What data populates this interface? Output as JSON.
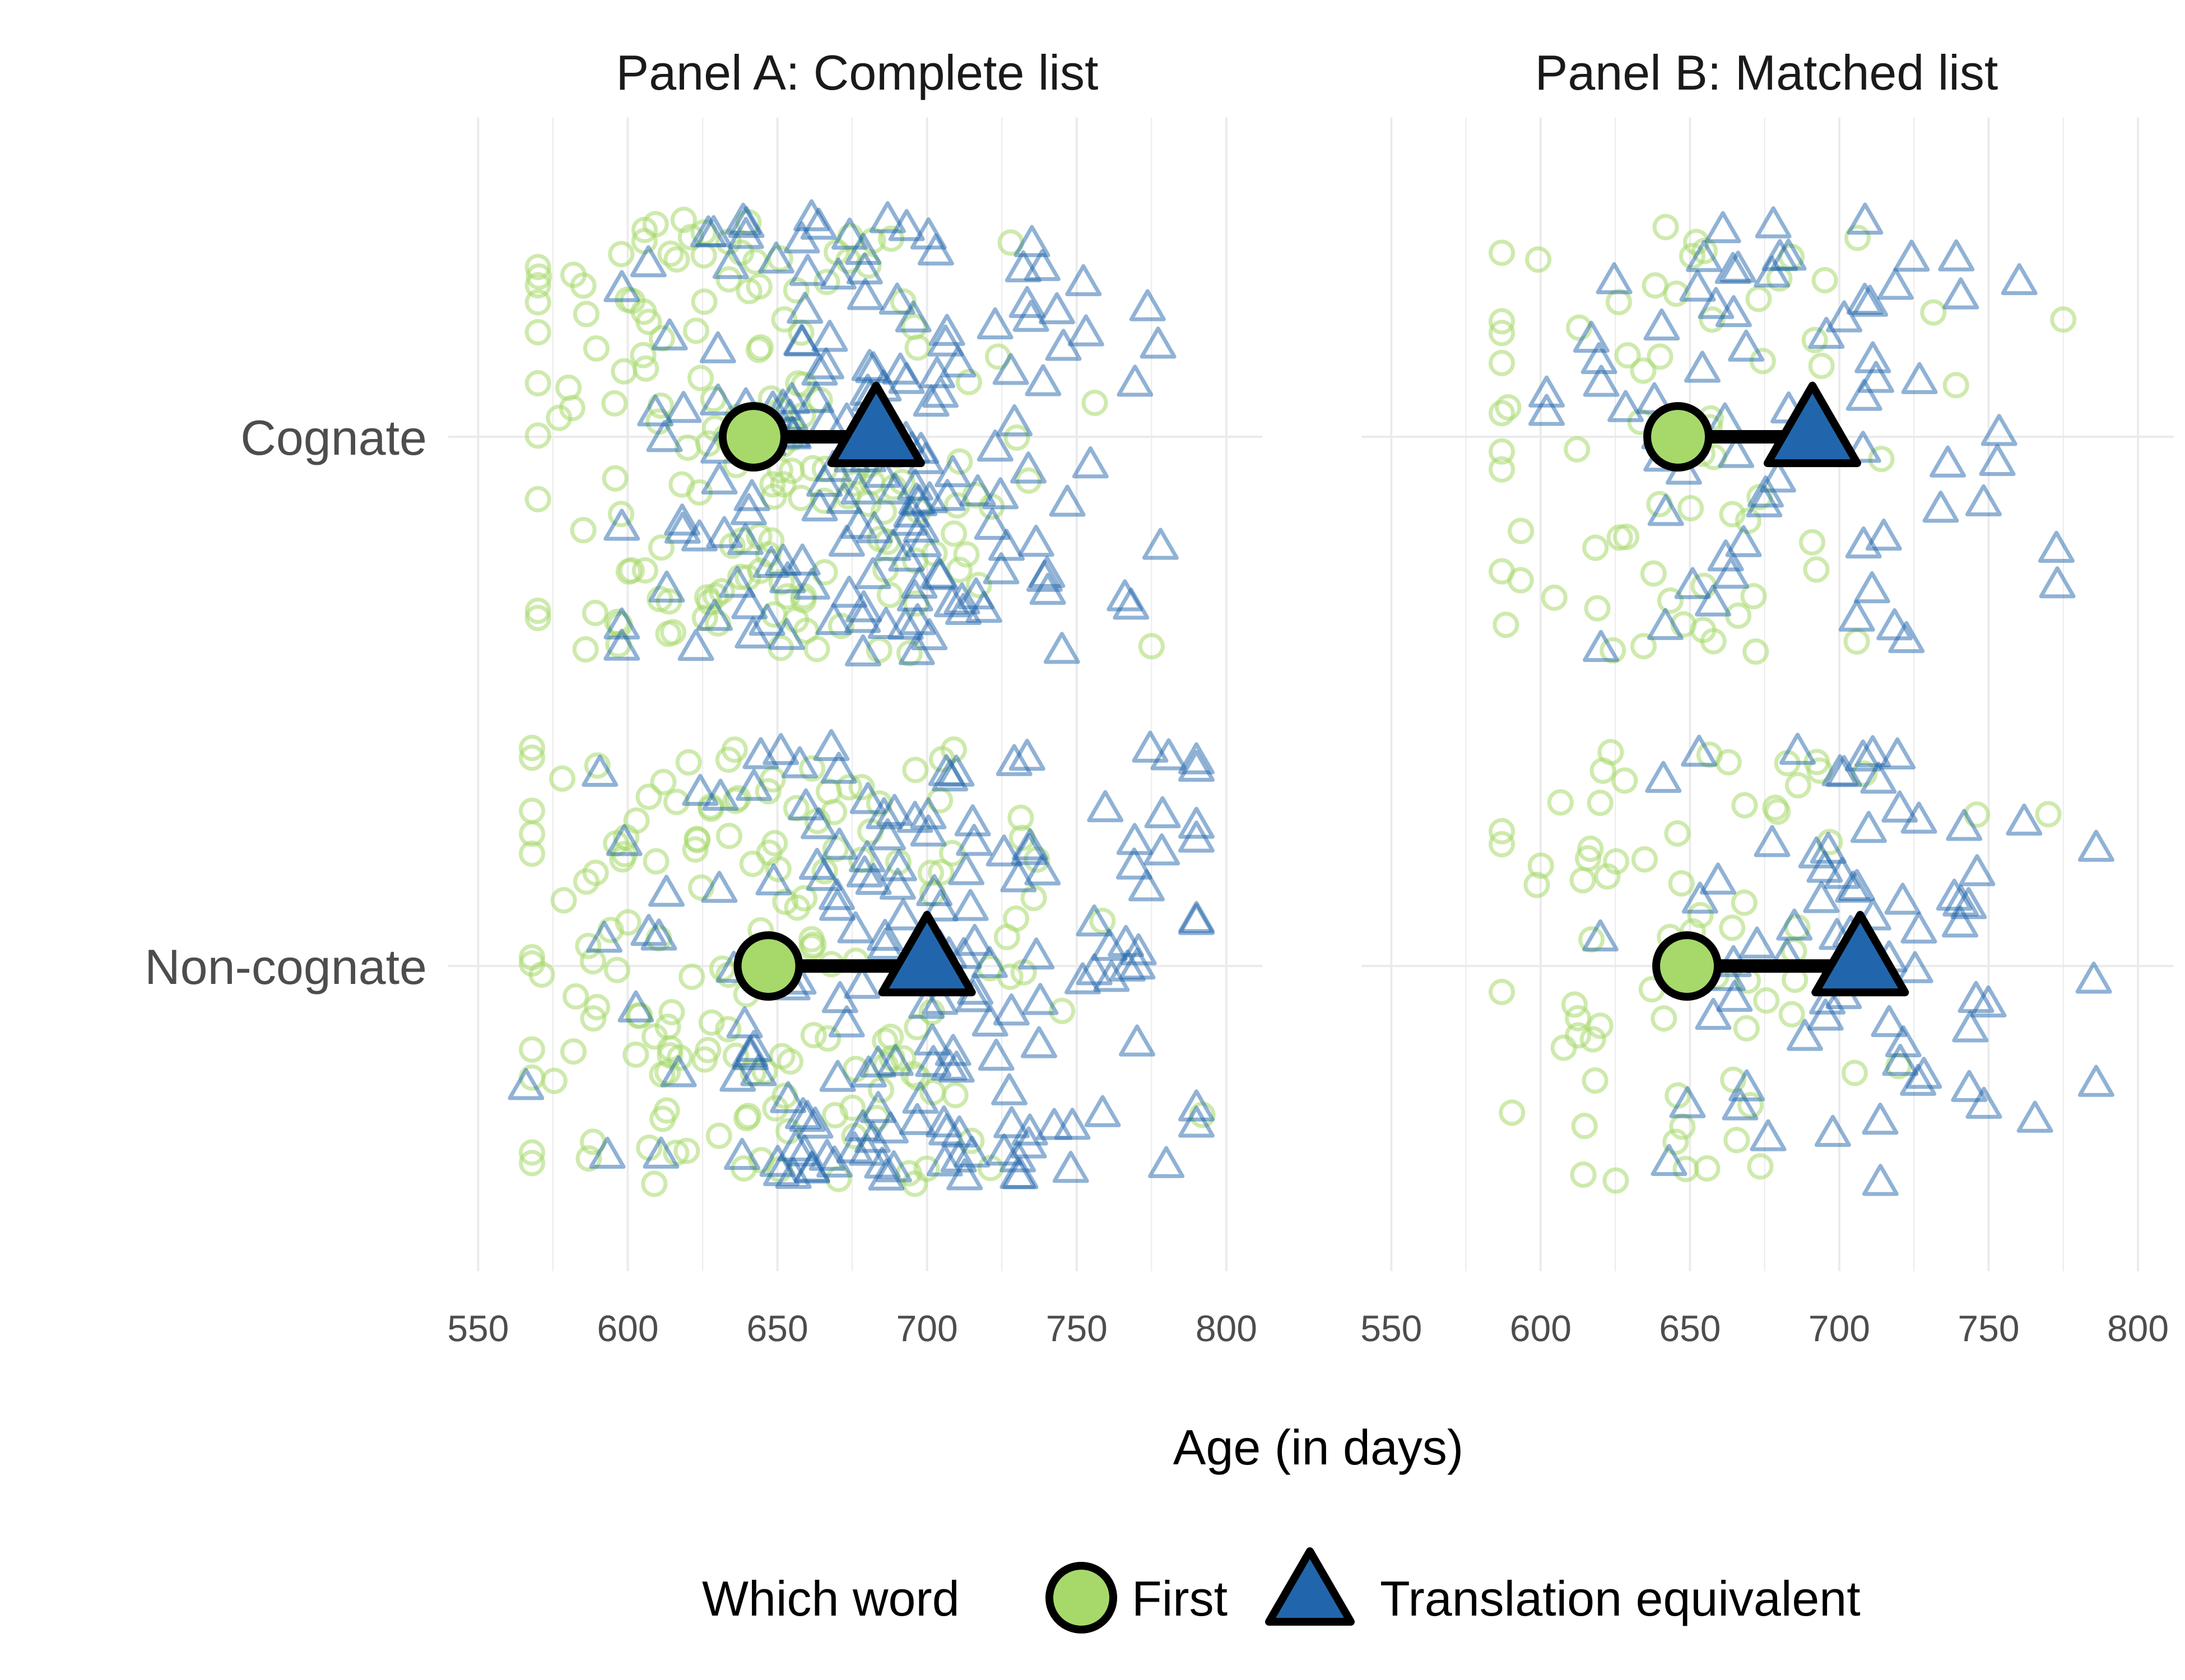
{
  "chart_data": {
    "type": "scatter",
    "xlabel": "Age (in days)",
    "x_ticks": [
      550,
      600,
      650,
      700,
      750,
      800
    ],
    "xlim": [
      540,
      812
    ],
    "categories": [
      "Cognate",
      "Non-cognate"
    ],
    "legend": {
      "title": "Which word",
      "position": "bottom",
      "entries": [
        {
          "name": "First",
          "shape": "circle",
          "color": "#a6d96a"
        },
        {
          "name": "Translation equivalent",
          "shape": "triangle",
          "color": "#2166ac"
        }
      ]
    },
    "colors": {
      "first": "#a6d96a",
      "translation": "#2166ac",
      "outline": "#000000"
    },
    "grid": true,
    "panels": [
      {
        "title": "Panel A: Complete list",
        "means": [
          {
            "category": "Cognate",
            "first": 642,
            "translation": 683
          },
          {
            "category": "Non-cognate",
            "first": 647,
            "translation": 700
          }
        ],
        "jitter_ranges": [
          {
            "category": "Cognate",
            "first": [
              570,
              775
            ],
            "translation": [
              598,
              778
            ]
          },
          {
            "category": "Non-cognate",
            "first": [
              568,
              792
            ],
            "translation": [
              566,
              790
            ]
          }
        ],
        "approx_points_per_group": 170
      },
      {
        "title": "Panel B: Matched list",
        "means": [
          {
            "category": "Cognate",
            "first": 646,
            "translation": 691
          },
          {
            "category": "Non-cognate",
            "first": 649,
            "translation": 707
          }
        ],
        "jitter_ranges": [
          {
            "category": "Cognate",
            "first": [
              587,
              775
            ],
            "translation": [
              602,
              773
            ]
          },
          {
            "category": "Non-cognate",
            "first": [
              587,
              770
            ],
            "translation": [
              620,
              786
            ]
          }
        ],
        "approx_points_per_group": 70
      }
    ]
  }
}
